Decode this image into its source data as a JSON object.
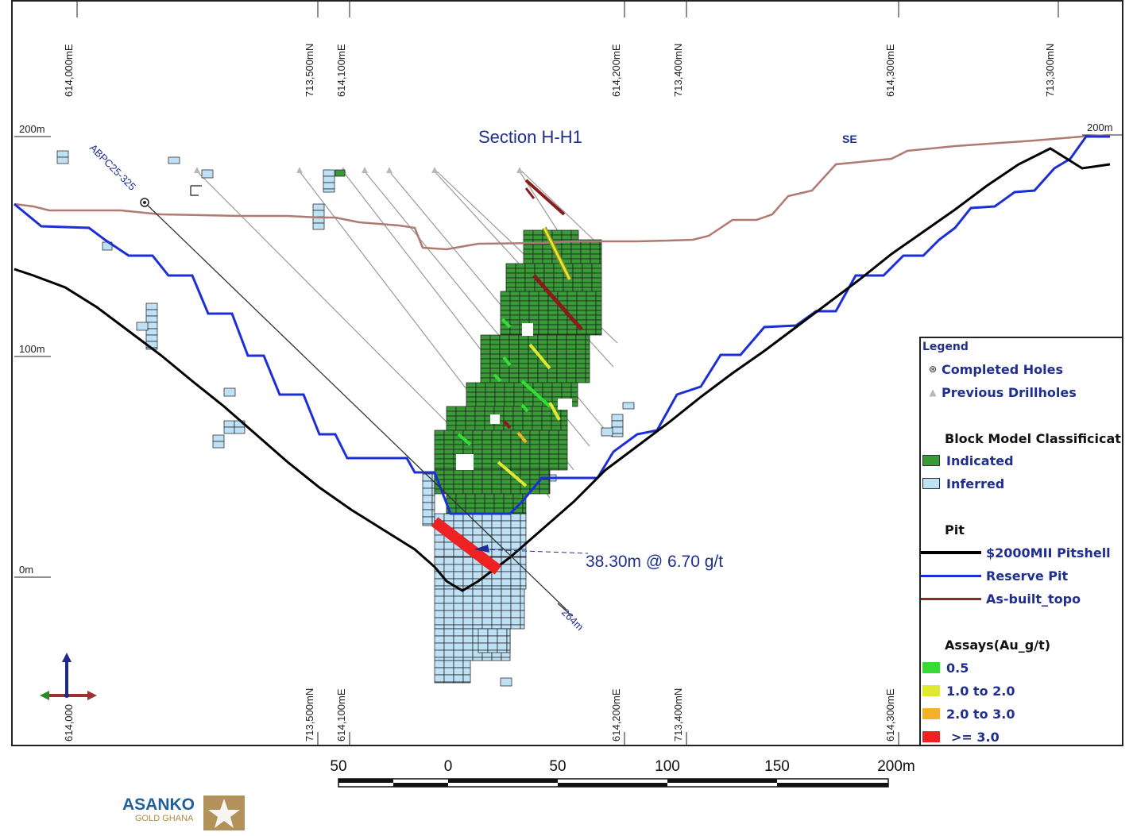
{
  "section_title": "Section H-H1",
  "direction_label": "SE",
  "top_coords": [
    "614,000mE",
    "713,500mN",
    "614,100mE",
    "614,200mE",
    "713,400mN",
    "614,300mE",
    "713,300mN"
  ],
  "bottom_coords": [
    "614,000",
    "713,500mN",
    "614,100mE",
    "614,200mE",
    "713,400mN",
    "614,300mE"
  ],
  "elevations": {
    "left_200": "200m",
    "right_200": "200m",
    "left_100": "100m",
    "left_0": "0m"
  },
  "hole_name": "ABPC25-325",
  "hole_depth": "264m",
  "intercept": "38.30m @ 6.70 g/t",
  "legend": {
    "title": "Legend",
    "completed_holes": "Completed Holes",
    "previous_drillholes": "Previous Drillholes",
    "block_model_heading": "Block Model Classificication",
    "indicated": "Indicated",
    "inferred": "Inferred",
    "pit_heading": "Pit",
    "pitshell": "$2000MII Pitshell",
    "reserve_pit": "Reserve Pit",
    "asbuilt": "As-built_topo",
    "assays_heading": "Assays(Au_g/t)",
    "assay_05": "0.5",
    "assay_1_2": "1.0 to 2.0",
    "assay_2_3": "2.0 to 3.0",
    "assay_3": ">= 3.0"
  },
  "colors": {
    "indicated": "#3a9a3a",
    "inferred": "#bfe1f5",
    "pitshell": "#000000",
    "reserve_pit": "#1c2fd6",
    "asbuilt": "#b07a72",
    "assay_05": "#33dd33",
    "assay_1_2": "#e0e830",
    "assay_2_3": "#f2b126",
    "assay_3": "#ee2222",
    "hole": "#1f2f8f"
  },
  "scale_labels": [
    "50",
    "0",
    "50",
    "100",
    "150",
    "200m"
  ],
  "logo": {
    "name": "ASANKO",
    "sub": "GOLD GHANA"
  }
}
